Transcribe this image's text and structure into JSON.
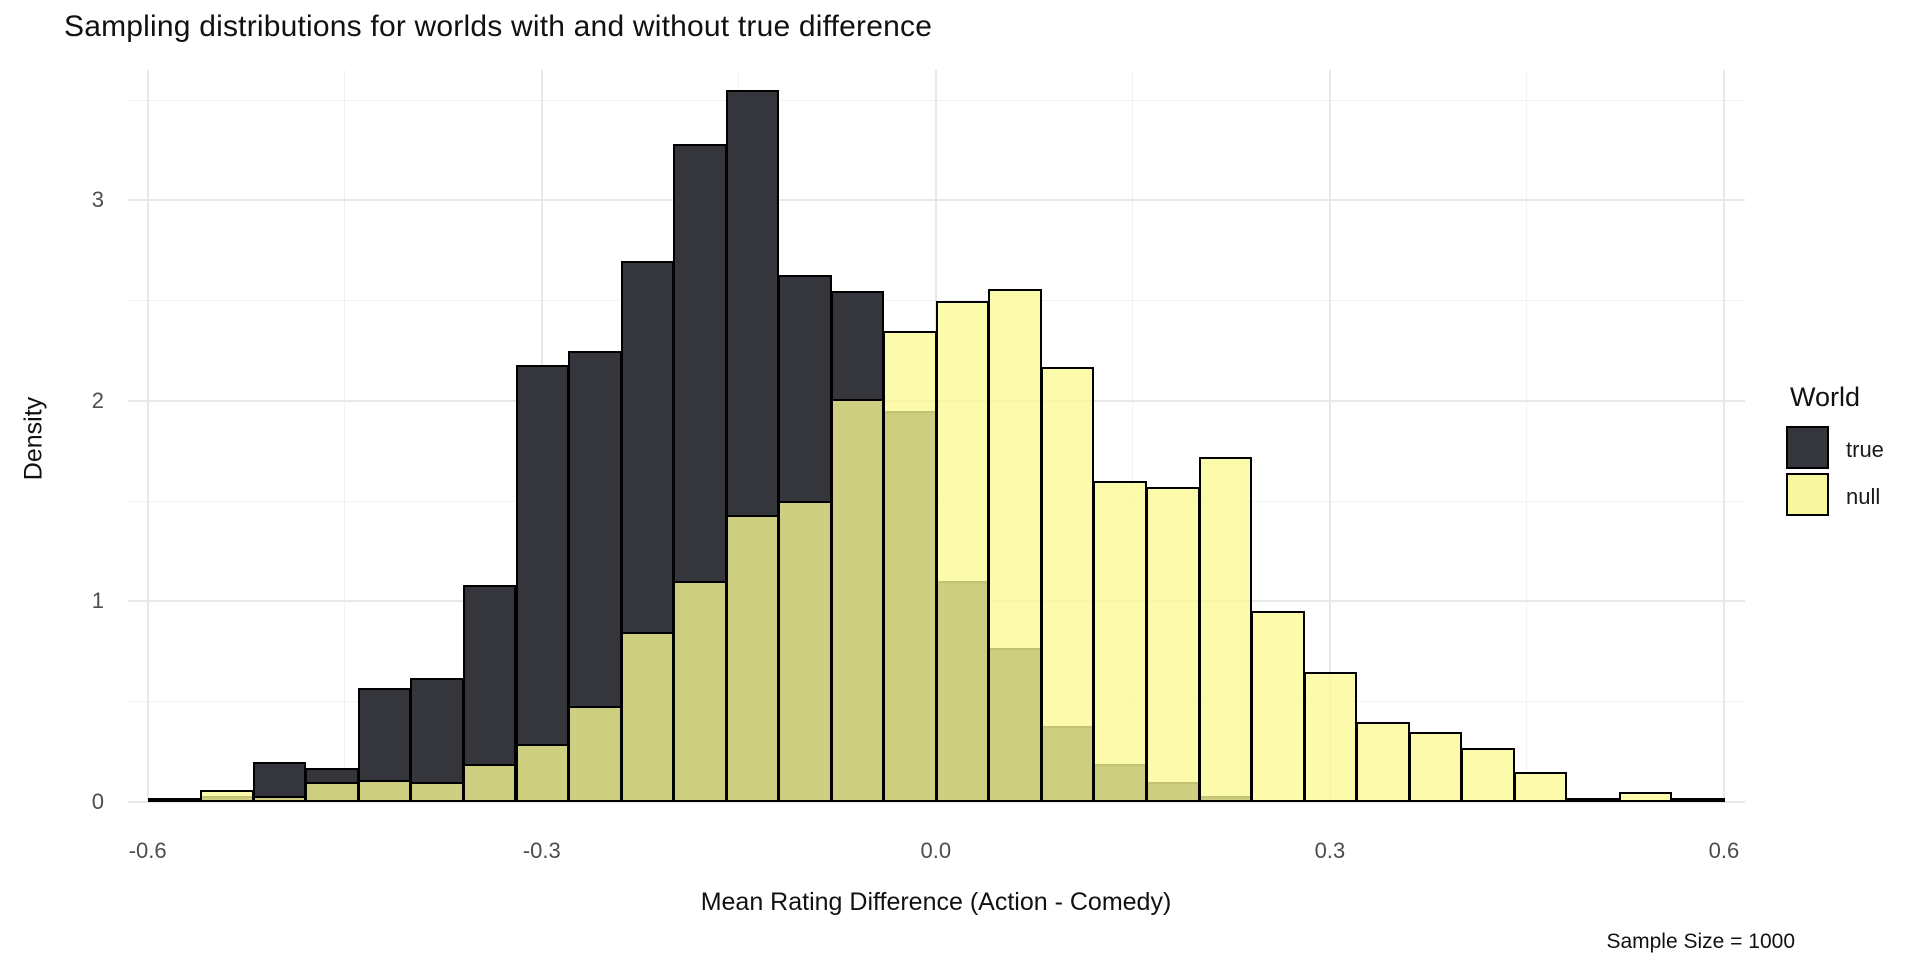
{
  "title": "Sampling distributions for worlds with and without true difference",
  "axes": {
    "x_title": "Mean Rating Difference (Action - Comedy)",
    "y_title": "Density"
  },
  "caption": "Sample Size = 1000",
  "legend": {
    "title": "World",
    "items": [
      {
        "label": "true",
        "color": "#35353C"
      },
      {
        "label": "null",
        "color": "#F7F7A0"
      }
    ]
  },
  "chart_data": {
    "type": "bar",
    "subtype": "overlaid-density-histograms",
    "title": "Sampling distributions for worlds with and without true difference",
    "xlabel": "Mean Rating Difference (Action - Comedy)",
    "ylabel": "Density",
    "caption": "Sample Size = 1000",
    "bin_start": -0.6,
    "binwidth": 0.04,
    "xlim": [
      -0.615,
      0.616
    ],
    "ylim": [
      0,
      3.65
    ],
    "x_ticks": [
      -0.6,
      -0.3,
      0.0,
      0.3,
      0.6
    ],
    "x_tick_labels": [
      "-0.6",
      "-0.3",
      "0.0",
      "0.3",
      "0.6"
    ],
    "y_ticks": [
      0,
      1,
      2,
      3
    ],
    "y_tick_labels": [
      "0",
      "1",
      "2",
      "3"
    ],
    "grid": "on",
    "legend_position": "right",
    "series": [
      {
        "name": "true",
        "fill": "#35353C",
        "border": "#000000",
        "values": [
          0.02,
          0.03,
          0.2,
          0.17,
          0.57,
          0.62,
          1.08,
          2.18,
          2.25,
          2.7,
          3.28,
          3.55,
          2.63,
          2.55,
          1.95,
          1.1,
          0.77,
          0.38,
          0.19,
          0.1,
          0.03,
          0,
          0,
          0,
          0,
          0,
          0,
          0,
          0,
          0
        ]
      },
      {
        "name": "null",
        "fill": "rgba(250,250,148,0.78)",
        "border": "#000000",
        "values": [
          0,
          0.06,
          0.03,
          0.1,
          0.11,
          0.1,
          0.19,
          0.29,
          0.48,
          0.85,
          1.1,
          1.43,
          1.5,
          2.01,
          2.35,
          2.5,
          2.56,
          2.17,
          1.6,
          1.57,
          1.72,
          0.95,
          0.65,
          0.4,
          0.35,
          0.27,
          0.15,
          0.02,
          0.05,
          0.02
        ]
      }
    ]
  }
}
